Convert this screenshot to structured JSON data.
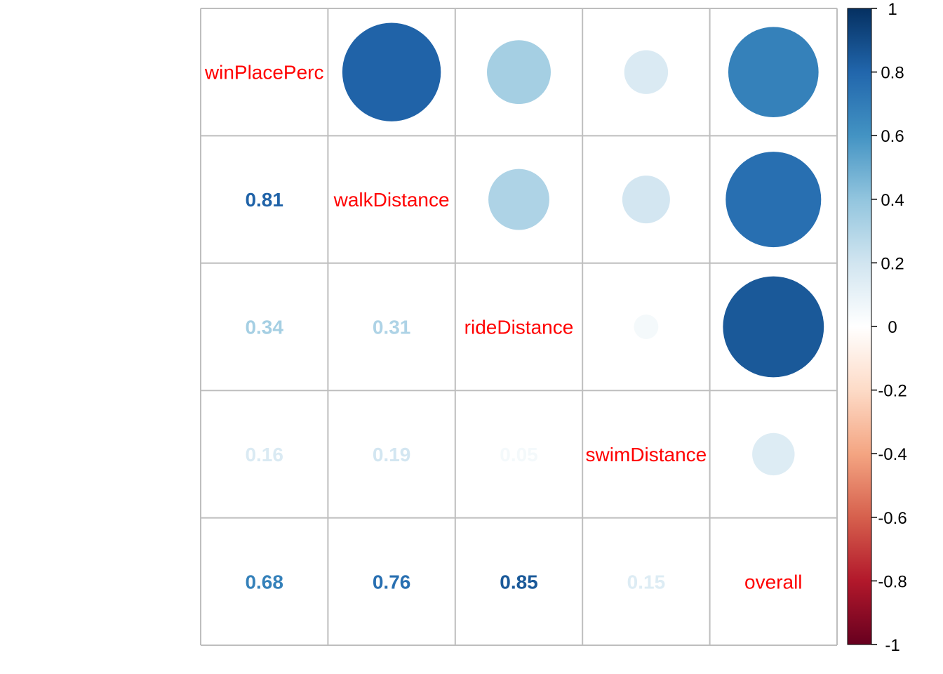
{
  "chart_data": {
    "type": "heatmap",
    "variables": [
      "winPlacePerc",
      "walkDistance",
      "rideDistance",
      "swimDistance",
      "overall"
    ],
    "matrix": [
      [
        1.0,
        0.81,
        0.34,
        0.16,
        0.68
      ],
      [
        0.81,
        1.0,
        0.31,
        0.19,
        0.76
      ],
      [
        0.34,
        0.31,
        1.0,
        0.05,
        0.85
      ],
      [
        0.16,
        0.19,
        0.05,
        1.0,
        0.15
      ],
      [
        0.68,
        0.76,
        0.85,
        0.15,
        1.0
      ]
    ],
    "coefficient_labels": {
      "r1c0": "0.81",
      "r2c0": "0.34",
      "r2c1": "0.31",
      "r3c0": "0.16",
      "r3c1": "0.19",
      "r3c2": "0.05",
      "r4c0": "0.68",
      "r4c1": "0.76",
      "r4c2": "0.85",
      "r4c3": "0.15"
    },
    "upper_triangle": "circle",
    "lower_triangle": "number",
    "diagonal": "variable-name",
    "label_color": "#ff0000",
    "grid": true,
    "grid_color": "#bebebe",
    "colorbar": {
      "position": "right",
      "range": [
        -1,
        1
      ],
      "ticks": [
        "1",
        "0.8",
        "0.6",
        "0.4",
        "0.2",
        "0",
        "-0.2",
        "-0.4",
        "-0.6",
        "-0.8",
        "-1"
      ],
      "palette": [
        "#67001f",
        "#b2182b",
        "#d6604d",
        "#f4a582",
        "#fddbc7",
        "#ffffff",
        "#d1e5f0",
        "#92c5de",
        "#4393c3",
        "#2166ac",
        "#053061"
      ]
    }
  }
}
